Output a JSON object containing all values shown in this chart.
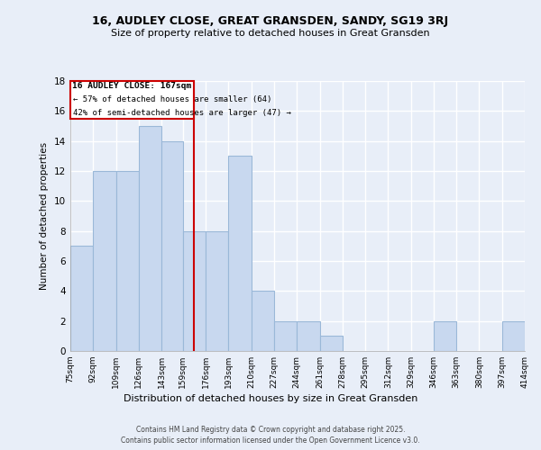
{
  "title1": "16, AUDLEY CLOSE, GREAT GRANSDEN, SANDY, SG19 3RJ",
  "title2": "Size of property relative to detached houses in Great Gransden",
  "xlabel": "Distribution of detached houses by size in Great Gransden",
  "ylabel": "Number of detached properties",
  "bin_edges": [
    75,
    92,
    109,
    126,
    143,
    159,
    176,
    193,
    210,
    227,
    244,
    261,
    278,
    295,
    312,
    329,
    346,
    363,
    380,
    397,
    414
  ],
  "counts": [
    7,
    12,
    12,
    15,
    14,
    8,
    8,
    13,
    4,
    2,
    2,
    1,
    0,
    0,
    0,
    0,
    2,
    0,
    0,
    2
  ],
  "bar_color": "#c8d8ef",
  "bar_edge_color": "#9ab8d8",
  "reference_value": 167,
  "reference_line_color": "#cc0000",
  "annotation_title": "16 AUDLEY CLOSE: 167sqm",
  "annotation_line1": "← 57% of detached houses are smaller (64)",
  "annotation_line2": "42% of semi-detached houses are larger (47) →",
  "annotation_box_edge_color": "#cc0000",
  "annotation_box_face_color": "white",
  "ylim": [
    0,
    18
  ],
  "yticks": [
    0,
    2,
    4,
    6,
    8,
    10,
    12,
    14,
    16,
    18
  ],
  "tick_labels": [
    "75sqm",
    "92sqm",
    "109sqm",
    "126sqm",
    "143sqm",
    "159sqm",
    "176sqm",
    "193sqm",
    "210sqm",
    "227sqm",
    "244sqm",
    "261sqm",
    "278sqm",
    "295sqm",
    "312sqm",
    "329sqm",
    "346sqm",
    "363sqm",
    "380sqm",
    "397sqm",
    "414sqm"
  ],
  "footer1": "Contains HM Land Registry data © Crown copyright and database right 2025.",
  "footer2": "Contains public sector information licensed under the Open Government Licence v3.0.",
  "background_color": "#e8eef8",
  "grid_color": "#ffffff",
  "title1_fontsize": 9.0,
  "title2_fontsize": 8.0
}
